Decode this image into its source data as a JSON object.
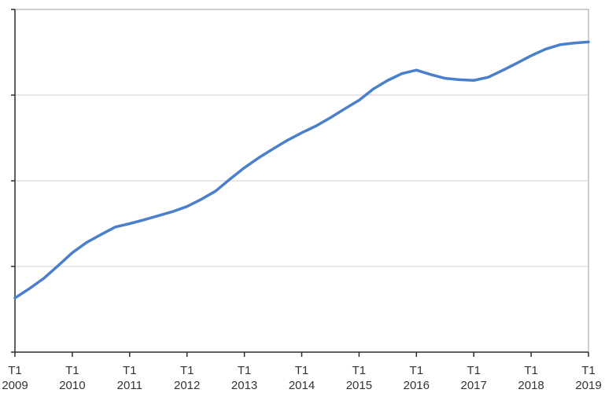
{
  "chart_data": {
    "type": "line",
    "title": "",
    "xlabel": "",
    "ylabel": "",
    "grid": true,
    "colors": {
      "line": "#4a7fcc",
      "grid": "#cfcfcf",
      "axis": "#2b2b2b",
      "frame": "#bdbdbd"
    },
    "ylim": [
      0,
      100
    ],
    "yticks": [
      0,
      25,
      50,
      75,
      100
    ],
    "x_tick_labels": [
      {
        "q": 0,
        "line1": "T1",
        "line2": "2009"
      },
      {
        "q": 4,
        "line1": "T1",
        "line2": "2010"
      },
      {
        "q": 8,
        "line1": "T1",
        "line2": "2011"
      },
      {
        "q": 12,
        "line1": "T1",
        "line2": "2012"
      },
      {
        "q": 16,
        "line1": "T1",
        "line2": "2013"
      },
      {
        "q": 20,
        "line1": "T1",
        "line2": "2014"
      },
      {
        "q": 24,
        "line1": "T1",
        "line2": "2015"
      },
      {
        "q": 28,
        "line1": "T1",
        "line2": "2016"
      },
      {
        "q": 32,
        "line1": "T1",
        "line2": "2017"
      },
      {
        "q": 36,
        "line1": "T1",
        "line2": "2018"
      },
      {
        "q": 40,
        "line1": "T1",
        "line2": "2019"
      }
    ],
    "series": [
      {
        "values": [
          15.8,
          18.5,
          21.5,
          25.2,
          29.0,
          32.0,
          34.3,
          36.5,
          37.5,
          38.6,
          39.8,
          41.0,
          42.5,
          44.6,
          47.0,
          50.5,
          53.8,
          56.7,
          59.3,
          61.8,
          64.0,
          66.0,
          68.4,
          71.0,
          73.5,
          76.8,
          79.3,
          81.3,
          82.3,
          81.0,
          79.9,
          79.5,
          79.3,
          80.2,
          82.2,
          84.3,
          86.5,
          88.4,
          89.7,
          90.2,
          90.5
        ]
      }
    ]
  }
}
